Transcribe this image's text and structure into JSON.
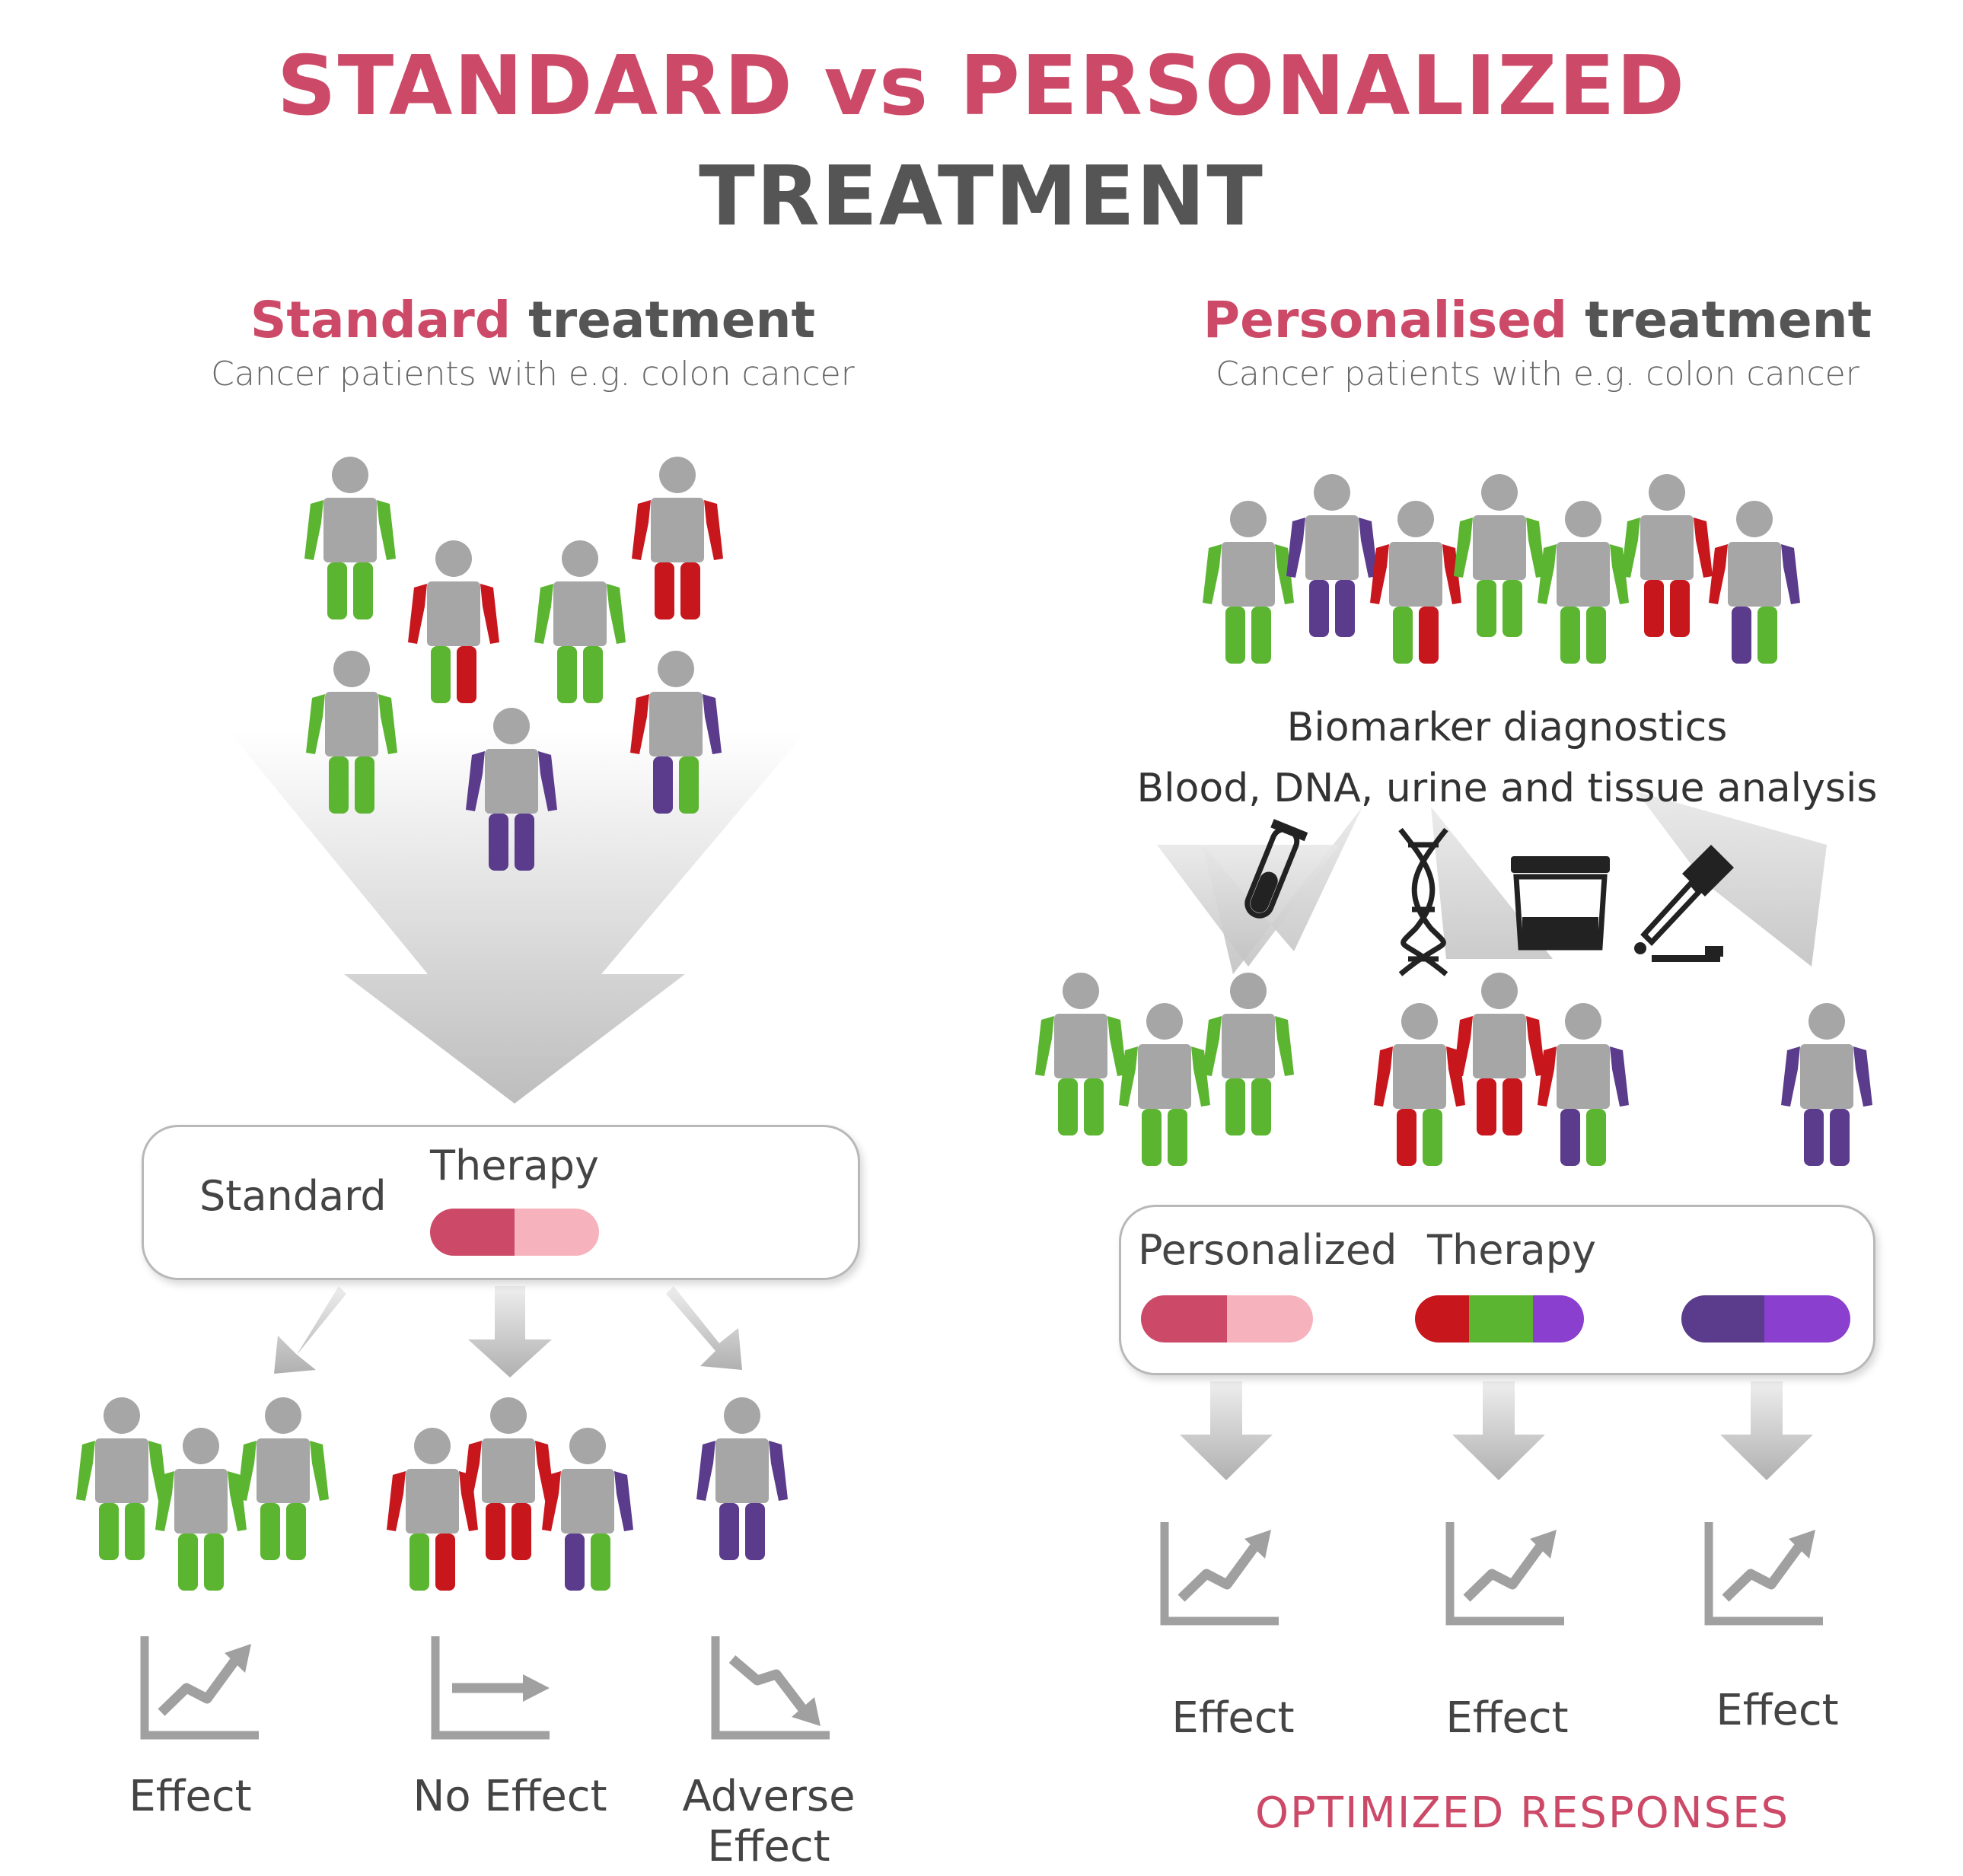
{
  "title": {
    "line1": "STANDARD vs PERSONALIZED",
    "line2": "TREATMENT"
  },
  "colors": {
    "accent": "#cc4a68",
    "heading_gray": "#555555",
    "green": "#5cb531",
    "red": "#c8161d",
    "purple": "#5b3b8c",
    "body_gray": "#a6a6a6"
  },
  "left": {
    "heading_pink": "Standard",
    "heading_rest": "treatment",
    "subtitle": "Cancer patients with e.g. colon cancer",
    "box": {
      "label1": "Standard",
      "label2": "Therapy"
    },
    "outcomes": [
      {
        "label": "Effect",
        "icon": "chart-up-icon"
      },
      {
        "label": "No Effect",
        "icon": "chart-flat-icon"
      },
      {
        "label": "Adverse\nEffect",
        "icon": "chart-down-icon"
      }
    ]
  },
  "right": {
    "heading_pink": "Personalised",
    "heading_rest": "treatment",
    "subtitle": "Cancer patients with e.g. colon cancer",
    "bio_line1": "Biomarker diagnostics",
    "bio_line2": "Blood, DNA, urine and tissue analysis",
    "box": {
      "label1": "Personalized",
      "label2": "Therapy"
    },
    "outcomes": [
      {
        "label": "Effect",
        "icon": "chart-up-icon"
      },
      {
        "label": "Effect",
        "icon": "chart-up-icon"
      },
      {
        "label": "Effect",
        "icon": "chart-up-icon"
      }
    ],
    "footer": "OPTIMIZED  RESPONSES"
  }
}
